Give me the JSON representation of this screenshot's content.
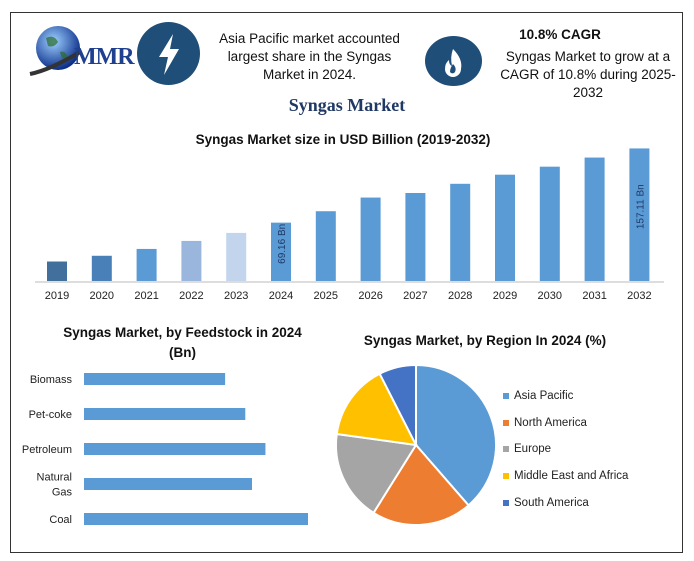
{
  "brand": {
    "logo_text": "MMR"
  },
  "header": {
    "left_note": "Asia Pacific market accounted largest share in the Syngas Market in 2024.",
    "cagr_title": "10.8% CAGR",
    "cagr_note": "Syngas Market to grow at a CAGR of 10.8% during 2025-2032",
    "icons": [
      "lightning-bolt-icon",
      "flame-icon"
    ],
    "icon_color": "#1f4e79"
  },
  "page_title": "Syngas Market",
  "chart_data": [
    {
      "type": "bar",
      "title": "Syngas Market size in USD Billion (2019-2032)",
      "categories": [
        "2019",
        "2020",
        "2021",
        "2022",
        "2023",
        "2024",
        "2025",
        "2026",
        "2027",
        "2028",
        "2029",
        "2030",
        "2031",
        "2032"
      ],
      "values": [
        23.1,
        29.9,
        38.0,
        47.5,
        57.0,
        69.16,
        82.7,
        98.9,
        104.3,
        115.2,
        126.0,
        135.5,
        146.3,
        157.11
      ],
      "colors": [
        "#41709c",
        "#4a80b8",
        "#5b9bd5",
        "#9ab6dd",
        "#c3d5ec",
        "#5b9bd5",
        "#5b9bd5",
        "#5b9bd5",
        "#5b9bd5",
        "#5b9bd5",
        "#5b9bd5",
        "#5b9bd5",
        "#5b9bd5",
        "#5b9bd5"
      ],
      "data_labels": {
        "2024": "69.16 Bn",
        "2032": "157.11 Bn"
      },
      "ylim": [
        0,
        160
      ],
      "grid": false
    },
    {
      "type": "bar",
      "orientation": "horizontal",
      "title": "Syngas Market, by Feedstock in 2024",
      "title_unit": "(Bn)",
      "categories": [
        "Biomass",
        "Pet-coke",
        "Petroleum",
        "Natural Gas",
        "Coal"
      ],
      "values": [
        63,
        72,
        81,
        75,
        100
      ],
      "color": "#5b9bd5",
      "grid": false
    },
    {
      "type": "pie",
      "title": "Syngas Market, by Region In 2024 (%)",
      "labels": [
        "Asia Pacific",
        "North America",
        "Europe",
        "Middle East and Africa",
        "South America"
      ],
      "values": [
        38.6,
        20.3,
        18.3,
        15.3,
        7.5
      ],
      "colors": [
        "#5b9bd5",
        "#ed7d31",
        "#a5a5a5",
        "#ffc000",
        "#4472c4"
      ],
      "legend": "right"
    }
  ]
}
